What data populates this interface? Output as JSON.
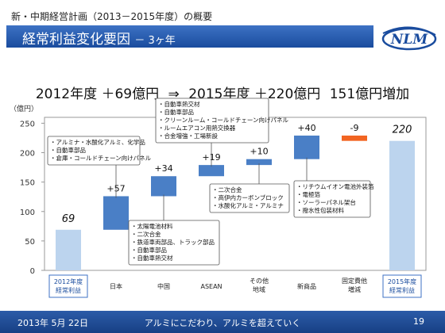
{
  "header": {
    "subtitle": "新・中期経営計画（2013－2015年度）の概要",
    "title": "経常利益変化要因",
    "title_suffix": "－ 3ヶ年",
    "logo_text": "NLM"
  },
  "headline": {
    "part1": "2012年度 ＋69億円",
    "arrow": "⇒",
    "part2": "2015年度 ＋220億円",
    "part3": "151億円増加"
  },
  "footer": {
    "date": "2013年 5月 22日",
    "slogan": "アルミにこだわり、アルミを超えていく",
    "page": "19"
  },
  "chart_data": {
    "type": "bar",
    "ylabel": "（億円）",
    "ylim": [
      0,
      260
    ],
    "yticks": [
      0,
      50,
      100,
      150,
      200,
      250
    ],
    "categories": [
      [
        "2012年度",
        "経常利益"
      ],
      [
        "日本"
      ],
      [
        "中国"
      ],
      [
        "ASEAN"
      ],
      [
        "その他",
        "地域"
      ],
      [
        "新商品"
      ],
      [
        "固定費他",
        "増減"
      ],
      [
        "2015年度",
        "経常利益"
      ]
    ],
    "bars": [
      {
        "kind": "total",
        "start": 0,
        "end": 69,
        "label": "69",
        "color": "#bcd4ee"
      },
      {
        "kind": "delta",
        "start": 69,
        "end": 126,
        "label": "+57",
        "color": "#4a7fc6"
      },
      {
        "kind": "delta",
        "start": 126,
        "end": 160,
        "label": "+34",
        "color": "#4a7fc6"
      },
      {
        "kind": "delta",
        "start": 160,
        "end": 179,
        "label": "+19",
        "color": "#4a7fc6"
      },
      {
        "kind": "delta",
        "start": 179,
        "end": 189,
        "label": "+10",
        "color": "#4a7fc6"
      },
      {
        "kind": "delta",
        "start": 189,
        "end": 229,
        "label": "+40",
        "color": "#4a7fc6"
      },
      {
        "kind": "delta",
        "start": 229,
        "end": 220,
        "label": "-9",
        "color": "#f26522"
      },
      {
        "kind": "total",
        "start": 0,
        "end": 220,
        "label": "220",
        "color": "#bcd4ee"
      }
    ],
    "callouts": [
      {
        "bar": 1,
        "lines": [
          "・アルミナ・水酸化アルミ、化学品",
          "・自動車部品",
          "・倉庫・コールドチェーン向けパネル"
        ]
      },
      {
        "bar": 2,
        "lines": [
          "・太陽電池材料",
          "・二次合金",
          "・鉄道車両部品、トラック部品",
          "・自動車部品",
          "・自動車熱交材"
        ]
      },
      {
        "bar": 3,
        "lines": [
          "・自動車熱交材",
          "・自動車部品",
          "・クリーンルーム・コールドチェーン向けパネル",
          "・ルームエアコン用熱交換器",
          "・合金増強・工場新設"
        ]
      },
      {
        "bar": 4,
        "lines": [
          "・二次合金",
          "・高伊内カーボンブロック",
          "・水酸化アルミ・アルミナ"
        ]
      },
      {
        "bar": 5,
        "lines": [
          "・リチウムイオン電池外装箔",
          "・電極箔",
          "・ソーラーパネル架台",
          "・撥水性包装材料"
        ]
      }
    ]
  }
}
